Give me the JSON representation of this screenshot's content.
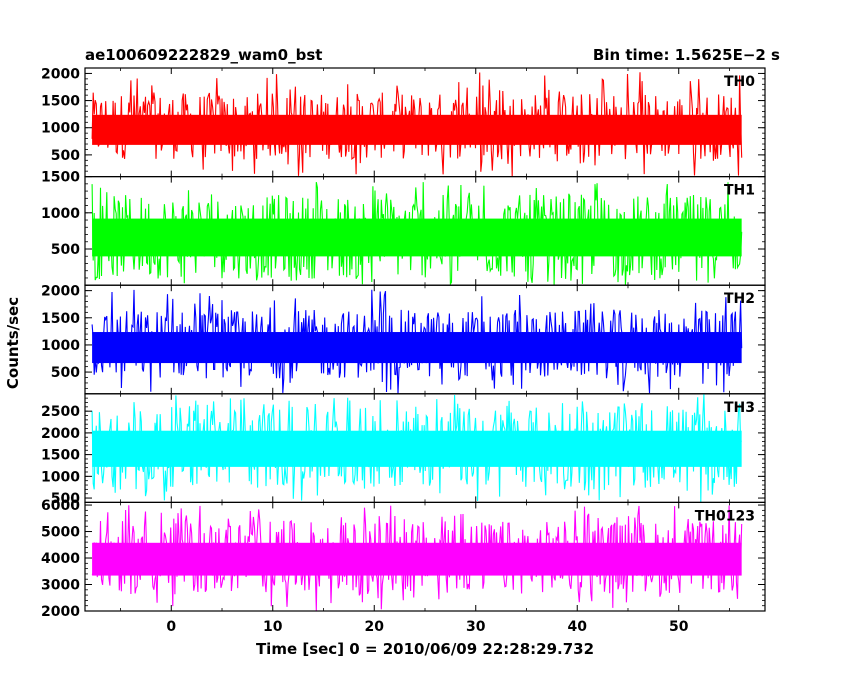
{
  "header": {
    "title": "ae100609222829_wam0_bst",
    "bin_time": "Bin time: 1.5625E−2 s"
  },
  "chart_data": {
    "type": "line",
    "title": "ae100609222829_wam0_bst",
    "xlabel": "Time [sec] 0 = 2010/06/09 22:28:29.732",
    "ylabel": "Counts/sec",
    "xlim": [
      -8.5,
      58.5
    ],
    "x_ticks": [
      0,
      10,
      20,
      30,
      40,
      50
    ],
    "data_x_range": [
      -7.8,
      56.2
    ],
    "panels": [
      {
        "name": "TH0",
        "color": "#ff0000",
        "ylim": [
          100,
          2100
        ],
        "y_ticks": [
          500,
          1000,
          1500,
          2000
        ],
        "mean": 900,
        "band": [
          420,
          1650
        ],
        "spike_max": 2050
      },
      {
        "name": "TH1",
        "color": "#00ff00",
        "ylim": [
          0,
          1500
        ],
        "y_ticks": [
          500,
          1000,
          1500
        ],
        "mean": 650,
        "band": [
          90,
          1250
        ],
        "spike_max": 1450
      },
      {
        "name": "TH2",
        "color": "#0000ff",
        "ylim": [
          100,
          2100
        ],
        "y_ticks": [
          500,
          1000,
          1500,
          2000
        ],
        "mean": 900,
        "band": [
          380,
          1650
        ],
        "spike_max": 2050
      },
      {
        "name": "TH3",
        "color": "#00ffff",
        "ylim": [
          400,
          2900
        ],
        "y_ticks": [
          500,
          1000,
          1500,
          2000,
          2500
        ],
        "mean": 1600,
        "band": [
          750,
          2600
        ],
        "spike_max": 2900
      },
      {
        "name": "TH0123",
        "color": "#ff00ff",
        "ylim": [
          2000,
          6100
        ],
        "y_ticks": [
          2000,
          3000,
          4000,
          5000,
          6000
        ],
        "mean": 3900,
        "band": [
          2650,
          5400
        ],
        "spike_max": 6000
      }
    ]
  }
}
